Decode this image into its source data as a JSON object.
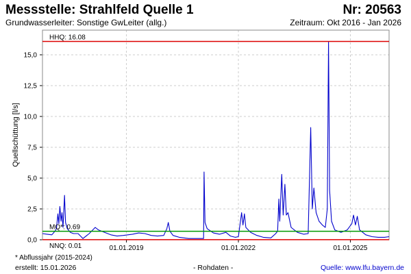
{
  "header": {
    "title": "Messstelle: Strahlfeld Quelle 1",
    "number": "Nr: 20563",
    "aquifer": "Grundwasserleiter: Sonstige GwLeiter (allg.)",
    "period": "Zeitraum: Okt 2016 - Jan 2026"
  },
  "footer": {
    "footnote": "* Abflussjahr (2015-2024)",
    "created": "erstellt:  15.01.2026",
    "rawdata": "- Rohdaten -",
    "source": "Quelle: www.lfu.bayern.de"
  },
  "colors": {
    "series": "#0000cc",
    "hhq": "#dd0000",
    "mq": "#009900",
    "nnq": "#dd0000",
    "grid": "#cccccc",
    "frame": "#888888"
  },
  "chart_data": {
    "type": "line",
    "title": "Messstelle: Strahlfeld Quelle 1",
    "ylabel": "Quellschüttung [l/s]",
    "xlabel": "",
    "xlim": [
      "2016-10-01",
      "2026-01-15"
    ],
    "ylim": [
      0,
      17
    ],
    "yticks": [
      0,
      2.5,
      5,
      7.5,
      10,
      12.5,
      15
    ],
    "ytick_labels": [
      "0,0",
      "2,5",
      "5,0",
      "7,5",
      "10,0",
      "12,5",
      "15,0"
    ],
    "xticks": [
      "2019-01-01",
      "2022-01-01",
      "2025-01-01"
    ],
    "xtick_labels": [
      "01.01.2019",
      "01.01.2022",
      "01.01.2025"
    ],
    "grid": true,
    "reference_lines": [
      {
        "label": "HHQ: 16.08",
        "value": 16.08,
        "color": "#dd0000"
      },
      {
        "label": "MQ*: 0.69",
        "value": 0.69,
        "color": "#009900"
      },
      {
        "label": "NNQ: 0.01",
        "value": 0.01,
        "color": "#dd0000"
      }
    ],
    "series": [
      {
        "color": "#0000cc",
        "points": [
          [
            "2016-10-01",
            0.5
          ],
          [
            "2016-11-15",
            0.45
          ],
          [
            "2017-01-01",
            0.4
          ],
          [
            "2017-02-01",
            0.7
          ],
          [
            "2017-02-15",
            0.9
          ],
          [
            "2017-03-01",
            2.1
          ],
          [
            "2017-03-10",
            1.3
          ],
          [
            "2017-03-20",
            2.7
          ],
          [
            "2017-04-01",
            1.5
          ],
          [
            "2017-04-10",
            2.2
          ],
          [
            "2017-04-20",
            1.0
          ],
          [
            "2017-05-05",
            3.6
          ],
          [
            "2017-05-15",
            1.4
          ],
          [
            "2017-06-01",
            0.9
          ],
          [
            "2017-07-01",
            0.6
          ],
          [
            "2017-08-01",
            0.5
          ],
          [
            "2017-09-15",
            0.5
          ],
          [
            "2017-11-01",
            0.1
          ],
          [
            "2018-01-01",
            0.5
          ],
          [
            "2018-03-01",
            1.0
          ],
          [
            "2018-04-01",
            0.8
          ],
          [
            "2018-06-01",
            0.6
          ],
          [
            "2018-08-01",
            0.4
          ],
          [
            "2018-10-01",
            0.3
          ],
          [
            "2018-12-01",
            0.35
          ],
          [
            "2019-03-01",
            0.45
          ],
          [
            "2019-05-01",
            0.55
          ],
          [
            "2019-07-01",
            0.5
          ],
          [
            "2019-09-01",
            0.35
          ],
          [
            "2019-11-01",
            0.3
          ],
          [
            "2020-01-01",
            0.35
          ],
          [
            "2020-02-01",
            0.9
          ],
          [
            "2020-02-15",
            1.4
          ],
          [
            "2020-03-01",
            0.7
          ],
          [
            "2020-04-01",
            0.35
          ],
          [
            "2020-06-01",
            0.2
          ],
          [
            "2020-09-01",
            0.1
          ],
          [
            "2020-12-01",
            0.1
          ],
          [
            "2021-01-25",
            0.1
          ],
          [
            "2021-01-30",
            5.5
          ],
          [
            "2021-02-08",
            1.4
          ],
          [
            "2021-03-01",
            0.9
          ],
          [
            "2021-05-01",
            0.55
          ],
          [
            "2021-07-01",
            0.45
          ],
          [
            "2021-09-01",
            0.6
          ],
          [
            "2021-10-15",
            0.3
          ],
          [
            "2021-12-01",
            0.2
          ],
          [
            "2022-01-01",
            0.25
          ],
          [
            "2022-02-01",
            2.2
          ],
          [
            "2022-02-15",
            1.2
          ],
          [
            "2022-03-01",
            2.1
          ],
          [
            "2022-03-15",
            1.0
          ],
          [
            "2022-05-01",
            0.6
          ],
          [
            "2022-07-01",
            0.35
          ],
          [
            "2022-09-01",
            0.2
          ],
          [
            "2022-11-15",
            0.15
          ],
          [
            "2023-01-01",
            0.5
          ],
          [
            "2023-01-20",
            0.7
          ],
          [
            "2023-02-01",
            3.3
          ],
          [
            "2023-02-10",
            1.5
          ],
          [
            "2023-03-01",
            5.3
          ],
          [
            "2023-03-15",
            2.0
          ],
          [
            "2023-04-01",
            4.5
          ],
          [
            "2023-04-15",
            2.0
          ],
          [
            "2023-05-01",
            2.2
          ],
          [
            "2023-06-01",
            1.0
          ],
          [
            "2023-08-01",
            0.6
          ],
          [
            "2023-10-01",
            0.45
          ],
          [
            "2023-11-15",
            0.5
          ],
          [
            "2023-12-10",
            9.1
          ],
          [
            "2023-12-25",
            2.5
          ],
          [
            "2024-01-10",
            4.2
          ],
          [
            "2024-02-01",
            2.2
          ],
          [
            "2024-03-01",
            1.5
          ],
          [
            "2024-04-01",
            1.2
          ],
          [
            "2024-05-01",
            1.0
          ],
          [
            "2024-05-20",
            2.5
          ],
          [
            "2024-06-01",
            16.08
          ],
          [
            "2024-06-12",
            4.0
          ],
          [
            "2024-07-01",
            1.5
          ],
          [
            "2024-08-01",
            0.8
          ],
          [
            "2024-10-01",
            0.6
          ],
          [
            "2024-12-01",
            0.8
          ],
          [
            "2025-01-15",
            1.3
          ],
          [
            "2025-02-01",
            2.0
          ],
          [
            "2025-02-20",
            1.2
          ],
          [
            "2025-03-10",
            1.9
          ],
          [
            "2025-04-01",
            0.8
          ],
          [
            "2025-06-01",
            0.4
          ],
          [
            "2025-08-01",
            0.25
          ],
          [
            "2025-10-01",
            0.2
          ],
          [
            "2025-12-01",
            0.2
          ],
          [
            "2026-01-15",
            0.25
          ]
        ]
      }
    ]
  }
}
